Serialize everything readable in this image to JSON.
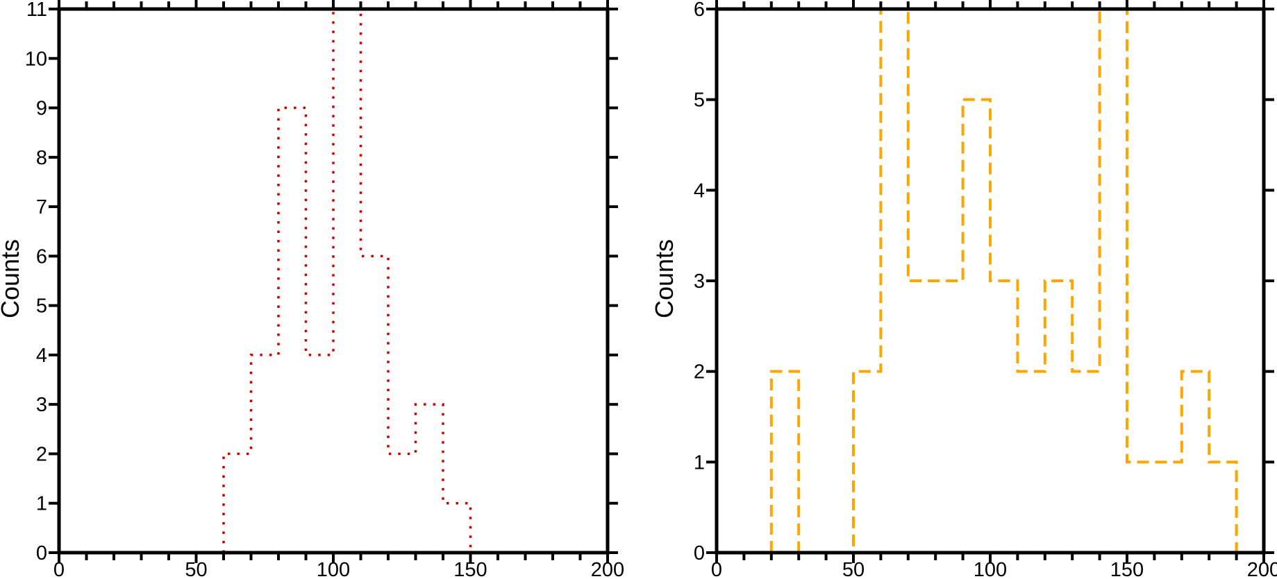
{
  "chart_data": [
    {
      "type": "bar",
      "subtype": "step-histogram",
      "title": "",
      "xlabel": "",
      "ylabel": "Counts",
      "xlim": [
        0,
        200
      ],
      "ylim": [
        0,
        11
      ],
      "bin_width": 10,
      "bin_edges": [
        60,
        70,
        80,
        90,
        100,
        110,
        120,
        130,
        140,
        150
      ],
      "values": [
        2,
        4,
        9,
        4,
        11,
        6,
        2,
        3,
        1
      ],
      "series_name": "red-dotted-histogram",
      "line_color": "#cc0000",
      "line_style": "dotted",
      "x_major_ticks": [
        0,
        50,
        100,
        150,
        200
      ],
      "x_major_tick_labels": [
        "0",
        "50",
        "100",
        "150",
        "200"
      ],
      "x_minor_tick_step": 10,
      "y_tick_step": 1,
      "y_tick_labels": [
        "0",
        "1",
        "2",
        "3",
        "4",
        "5",
        "6",
        "7",
        "8",
        "9",
        "10",
        "11"
      ],
      "grid": false,
      "legend": null,
      "frame_color": "#000000"
    },
    {
      "type": "bar",
      "subtype": "step-histogram",
      "title": "",
      "xlabel": "",
      "ylabel": "Counts",
      "xlim": [
        0,
        200
      ],
      "ylim": [
        0,
        6
      ],
      "bin_width": 10,
      "bin_edges": [
        20,
        30,
        40,
        50,
        60,
        70,
        80,
        90,
        100,
        110,
        120,
        130,
        140,
        150,
        160,
        170,
        180,
        190
      ],
      "values": [
        2,
        0,
        0,
        2,
        6,
        3,
        3,
        5,
        3,
        2,
        3,
        2,
        6,
        1,
        1,
        2,
        1
      ],
      "series_name": "orange-dashed-histogram",
      "line_color": "#ffa500",
      "line_style": "dashed",
      "x_major_ticks": [
        0,
        50,
        100,
        150,
        200
      ],
      "x_major_tick_labels": [
        "0",
        "50",
        "100",
        "150",
        "200"
      ],
      "x_minor_tick_step": 10,
      "y_tick_step": 1,
      "y_tick_labels": [
        "0",
        "1",
        "2",
        "3",
        "4",
        "5",
        "6"
      ],
      "grid": false,
      "legend": null,
      "frame_color": "#000000"
    }
  ]
}
